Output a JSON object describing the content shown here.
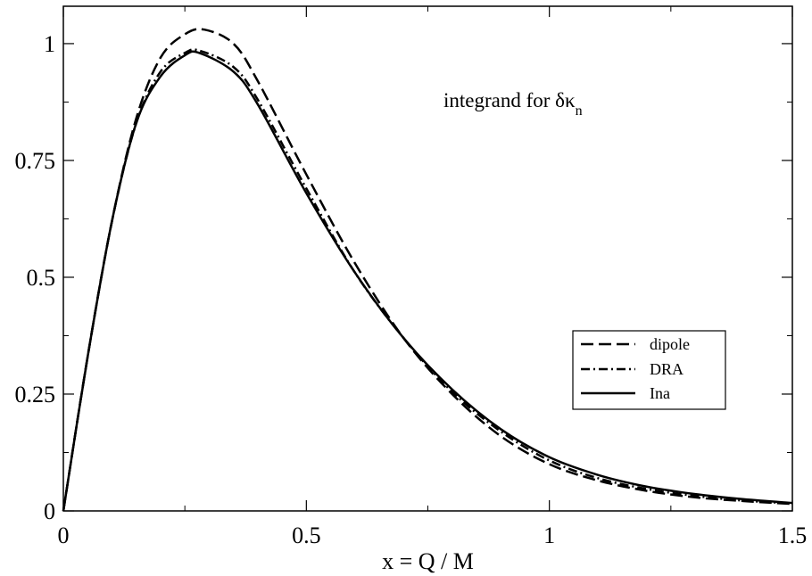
{
  "chart_data": {
    "type": "line",
    "title": "",
    "annotation": {
      "main": "integrand for δκ",
      "subscript": "n"
    },
    "xlabel": "x = Q / M",
    "ylabel": "",
    "xlim": [
      0,
      1.5
    ],
    "ylim": [
      0,
      1.08
    ],
    "x_ticks": [
      {
        "value": 0,
        "label": "0"
      },
      {
        "value": 0.5,
        "label": "0.5"
      },
      {
        "value": 1,
        "label": "1"
      },
      {
        "value": 1.5,
        "label": "1.5"
      }
    ],
    "y_ticks": [
      {
        "value": 0,
        "label": "0"
      },
      {
        "value": 0.25,
        "label": "0.25"
      },
      {
        "value": 0.5,
        "label": "0.5"
      },
      {
        "value": 0.75,
        "label": "0.75"
      },
      {
        "value": 1,
        "label": "1"
      }
    ],
    "grid": false,
    "legend_position": "right",
    "series": [
      {
        "name": "dipole",
        "style": "dashed",
        "x": [
          0,
          0.05,
          0.1,
          0.15,
          0.2,
          0.25,
          0.29,
          0.35,
          0.4,
          0.5,
          0.6,
          0.7,
          0.8,
          0.9,
          1.0,
          1.1,
          1.2,
          1.3,
          1.4,
          1.5
        ],
        "y": [
          0,
          0.33,
          0.62,
          0.84,
          0.97,
          1.02,
          1.03,
          1.0,
          0.92,
          0.72,
          0.53,
          0.37,
          0.25,
          0.16,
          0.1,
          0.065,
          0.043,
          0.029,
          0.021,
          0.015
        ]
      },
      {
        "name": "DRA",
        "style": "dashdot",
        "x": [
          0,
          0.05,
          0.1,
          0.15,
          0.2,
          0.25,
          0.28,
          0.35,
          0.4,
          0.5,
          0.6,
          0.7,
          0.8,
          0.9,
          1.0,
          1.1,
          1.2,
          1.3,
          1.4,
          1.5
        ],
        "y": [
          0,
          0.33,
          0.62,
          0.83,
          0.94,
          0.98,
          0.985,
          0.95,
          0.88,
          0.69,
          0.51,
          0.37,
          0.255,
          0.17,
          0.108,
          0.07,
          0.047,
          0.032,
          0.022,
          0.016
        ]
      },
      {
        "name": "Ina",
        "style": "solid",
        "x": [
          0,
          0.05,
          0.1,
          0.15,
          0.2,
          0.25,
          0.28,
          0.35,
          0.4,
          0.5,
          0.6,
          0.7,
          0.8,
          0.9,
          1.0,
          1.1,
          1.2,
          1.3,
          1.4,
          1.5
        ],
        "y": [
          0,
          0.33,
          0.62,
          0.83,
          0.93,
          0.975,
          0.98,
          0.94,
          0.87,
          0.68,
          0.51,
          0.37,
          0.26,
          0.175,
          0.115,
          0.077,
          0.052,
          0.036,
          0.025,
          0.017
        ]
      }
    ]
  }
}
